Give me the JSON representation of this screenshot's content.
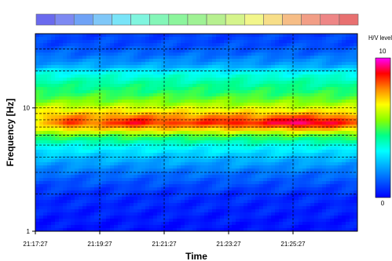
{
  "chart_data": {
    "type": "heatmap",
    "title": "",
    "xlabel": "Time",
    "ylabel": "Frequency [Hz]",
    "x_ticks": [
      "21:17:27",
      "21:19:27",
      "21:21:27",
      "21:23:27",
      "21:25:27"
    ],
    "y_ticks": [
      "1",
      "10"
    ],
    "y_scale": "log",
    "ylim": [
      1,
      40
    ],
    "xlim": [
      "21:17:27",
      "21:27:27"
    ],
    "grid": true,
    "colorbar": {
      "label": "H/V level",
      "min": "0",
      "max": "10",
      "colors": [
        "#0000ff",
        "#0055ff",
        "#00aaff",
        "#00ffff",
        "#00ff88",
        "#88ff00",
        "#ffff00",
        "#ff8800",
        "#ff0000",
        "#ff00ff"
      ]
    },
    "palette_strip_colors": [
      "#6a6aee",
      "#7d89f2",
      "#6fa2f6",
      "#7fc7f8",
      "#79e4f8",
      "#80f5df",
      "#84f6b8",
      "#8cf59c",
      "#9ff294",
      "#b7f08f",
      "#d5f48b",
      "#f2f68a",
      "#f7de88",
      "#f6bd86",
      "#f29e86",
      "#ee8686",
      "#e87070"
    ],
    "hv_profile_by_frequency": [
      {
        "f": 1.0,
        "v": 0.2
      },
      {
        "f": 2.0,
        "v": 0.6
      },
      {
        "f": 3.0,
        "v": 1.5
      },
      {
        "f": 4.0,
        "v": 2.5
      },
      {
        "f": 5.0,
        "v": 3.6
      },
      {
        "f": 6.0,
        "v": 5.2
      },
      {
        "f": 6.8,
        "v": 7.2
      },
      {
        "f": 7.6,
        "v": 8.3
      },
      {
        "f": 8.5,
        "v": 7.6
      },
      {
        "f": 9.5,
        "v": 6.7
      },
      {
        "f": 11.0,
        "v": 5.6
      },
      {
        "f": 13.0,
        "v": 4.8
      },
      {
        "f": 16.0,
        "v": 4.2
      },
      {
        "f": 19.0,
        "v": 3.5
      },
      {
        "f": 22.0,
        "v": 2.2
      },
      {
        "f": 27.0,
        "v": 1.4
      },
      {
        "f": 32.0,
        "v": 1.0
      },
      {
        "f": 40.0,
        "v": 0.8
      }
    ],
    "peak_band_frequency": 7.6,
    "peak_by_time": [
      {
        "t": "21:17:27",
        "v": 6.5
      },
      {
        "t": "21:18:27",
        "v": 8.6
      },
      {
        "t": "21:19:27",
        "v": 8.0
      },
      {
        "t": "21:20:27",
        "v": 9.0
      },
      {
        "t": "21:21:27",
        "v": 8.5
      },
      {
        "t": "21:22:27",
        "v": 8.4
      },
      {
        "t": "21:23:27",
        "v": 8.9
      },
      {
        "t": "21:24:27",
        "v": 8.6
      },
      {
        "t": "21:25:27",
        "v": 9.6
      },
      {
        "t": "21:26:27",
        "v": 9.2
      },
      {
        "t": "21:27:27",
        "v": 8.2
      }
    ]
  }
}
